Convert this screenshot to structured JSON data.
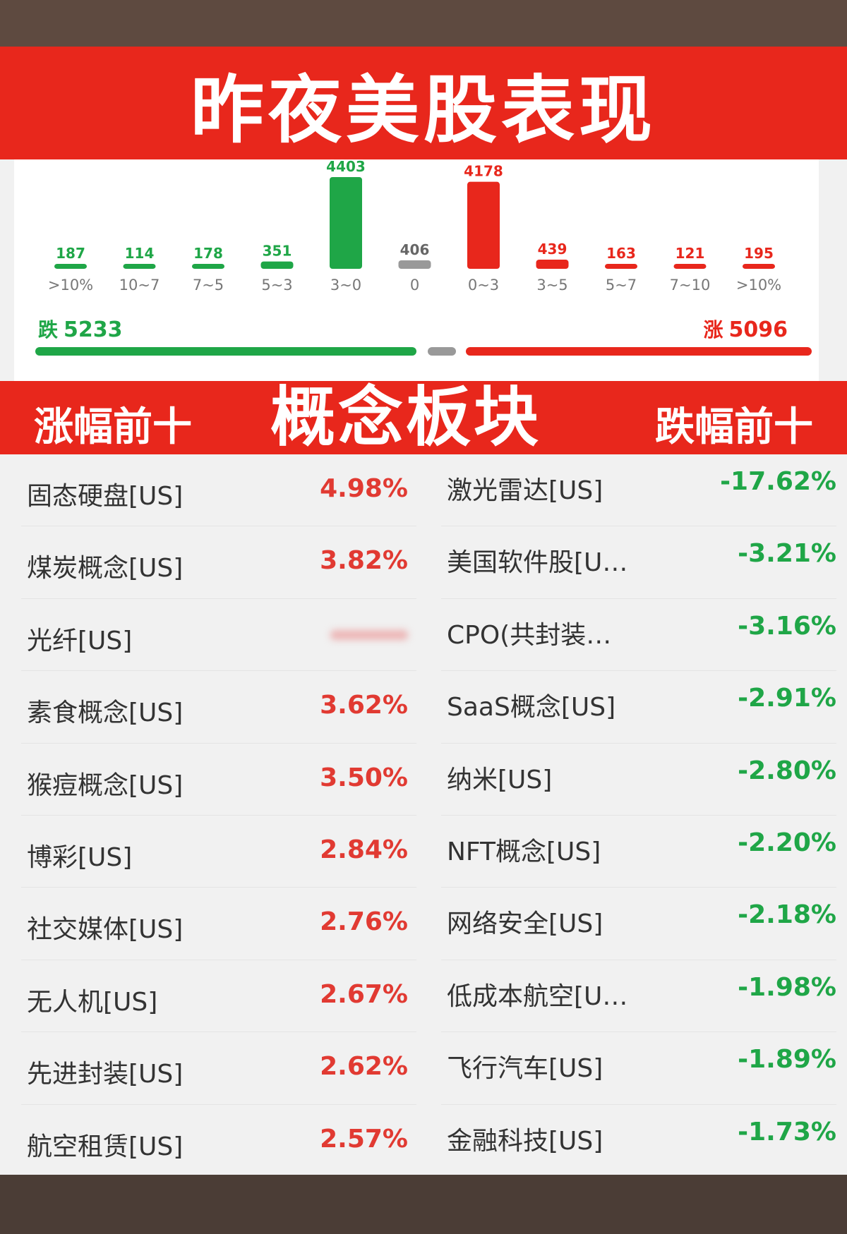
{
  "title": "昨夜美股表现",
  "colors": {
    "up": "#e8271c",
    "down": "#1fa647",
    "flat": "#999999",
    "banner": "#e8271c"
  },
  "chart_data": {
    "type": "bar",
    "categories": [
      ">10%",
      "10~7",
      "7~5",
      "5~3",
      "3~0",
      "0",
      "0~3",
      "3~5",
      "5~7",
      "7~10",
      ">10%"
    ],
    "values": [
      187,
      114,
      178,
      351,
      4403,
      406,
      4178,
      439,
      163,
      121,
      195
    ],
    "bar_colors": [
      "#1fa647",
      "#1fa647",
      "#1fa647",
      "#1fa647",
      "#1fa647",
      "#999999",
      "#e8271c",
      "#e8271c",
      "#e8271c",
      "#e8271c",
      "#e8271c"
    ],
    "xlabel": "",
    "ylabel": "",
    "grid": false
  },
  "summary": {
    "down_label": "跌",
    "down_count": "5233",
    "up_label": "涨",
    "up_count": "5096"
  },
  "sections": {
    "left_title": "涨幅前十",
    "center_title": "概念板块",
    "right_title": "跌幅前十"
  },
  "gainers": [
    {
      "name": "固态硬盘[US]",
      "pct": "4.98%"
    },
    {
      "name": "煤炭概念[US]",
      "pct": "3.82%"
    },
    {
      "name": "光纤[US]",
      "pct": ""
    },
    {
      "name": "素食概念[US]",
      "pct": "3.62%"
    },
    {
      "name": "猴痘概念[US]",
      "pct": "3.50%"
    },
    {
      "name": "博彩[US]",
      "pct": "2.84%"
    },
    {
      "name": "社交媒体[US]",
      "pct": "2.76%"
    },
    {
      "name": "无人机[US]",
      "pct": "2.67%"
    },
    {
      "name": "先进封装[US]",
      "pct": "2.62%"
    },
    {
      "name": "航空租赁[US]",
      "pct": "2.57%"
    }
  ],
  "losers": [
    {
      "name": "激光雷达[US]",
      "pct": "-17.62%"
    },
    {
      "name": "美国软件股[U…",
      "pct": "-3.21%"
    },
    {
      "name": "CPO(共封装…",
      "pct": "-3.16%"
    },
    {
      "name": "SaaS概念[US]",
      "pct": "-2.91%"
    },
    {
      "name": "纳米[US]",
      "pct": "-2.80%"
    },
    {
      "name": "NFT概念[US]",
      "pct": "-2.20%"
    },
    {
      "name": "网络安全[US]",
      "pct": "-2.18%"
    },
    {
      "name": "低成本航空[U…",
      "pct": "-1.98%"
    },
    {
      "name": "飞行汽车[US]",
      "pct": "-1.89%"
    },
    {
      "name": "金融科技[US]",
      "pct": "-1.73%"
    }
  ]
}
